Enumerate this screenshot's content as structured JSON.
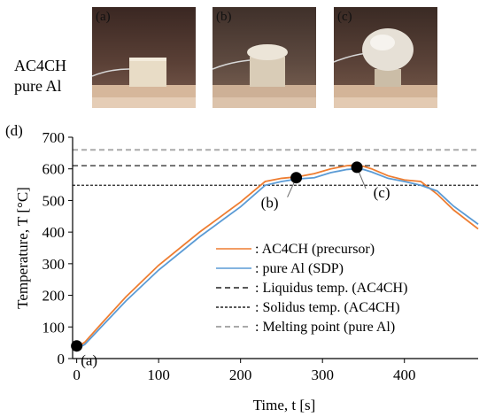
{
  "side_labels": [
    "AC4CH",
    "pure Al"
  ],
  "photos": [
    {
      "tag": "(a)",
      "colors": {
        "top": "#3c2a24",
        "bottom": "#caa98e"
      }
    },
    {
      "tag": "(b)",
      "colors": {
        "top": "#4a3a32",
        "bottom": "#b89a82"
      }
    },
    {
      "tag": "(c)",
      "colors": {
        "top": "#3a2c26",
        "bottom": "#c7a88c"
      }
    }
  ],
  "panel_label": "(d)",
  "chart_data": {
    "type": "line",
    "xlabel": "Time, t [s]",
    "ylabel": "Temperature, T [°C]",
    "xlim": [
      -5,
      490
    ],
    "ylim": [
      0,
      700
    ],
    "xticks": [
      0,
      100,
      200,
      300,
      400
    ],
    "yticks": [
      0,
      100,
      200,
      300,
      400,
      500,
      600,
      700
    ],
    "grid": false,
    "legend_position": "bottom-right",
    "series": [
      {
        "name": ": AC4CH (precursor)",
        "color": "#ee7d31",
        "style": "solid",
        "x": [
          0,
          10,
          30,
          60,
          100,
          150,
          200,
          230,
          250,
          270,
          290,
          310,
          330,
          340,
          350,
          360,
          380,
          400,
          420,
          440,
          460,
          490
        ],
        "y": [
          35,
          52,
          110,
          195,
          295,
          400,
          495,
          560,
          570,
          575,
          585,
          600,
          610,
          612,
          608,
          600,
          578,
          565,
          560,
          520,
          470,
          410
        ]
      },
      {
        "name": ": pure Al (SDP)",
        "color": "#5b9bd5",
        "style": "solid",
        "x": [
          0,
          10,
          30,
          60,
          100,
          150,
          200,
          230,
          250,
          270,
          290,
          310,
          330,
          340,
          350,
          360,
          380,
          400,
          420,
          440,
          460,
          490
        ],
        "y": [
          30,
          45,
          100,
          182,
          280,
          385,
          480,
          548,
          560,
          568,
          572,
          588,
          598,
          600,
          598,
          590,
          570,
          560,
          548,
          530,
          482,
          425
        ]
      },
      {
        "name": ": Liquidus temp. (AC4CH)",
        "color": "#222222",
        "style": "dashed",
        "x": [
          -5,
          490
        ],
        "y": [
          610,
          610
        ]
      },
      {
        "name": ": Solidus temp. (AC4CH)",
        "color": "#222222",
        "style": "dotted",
        "x": [
          -5,
          490
        ],
        "y": [
          548,
          548
        ]
      },
      {
        "name": ": Melting point (pure Al)",
        "color": "#aaaaaa",
        "style": "dashed",
        "x": [
          -5,
          490
        ],
        "y": [
          660,
          660
        ]
      }
    ],
    "markers": [
      {
        "label": "(a)",
        "x": 0,
        "y": 40
      },
      {
        "label": "(b)",
        "x": 268,
        "y": 572
      },
      {
        "label": "(c)",
        "x": 342,
        "y": 605
      }
    ]
  }
}
